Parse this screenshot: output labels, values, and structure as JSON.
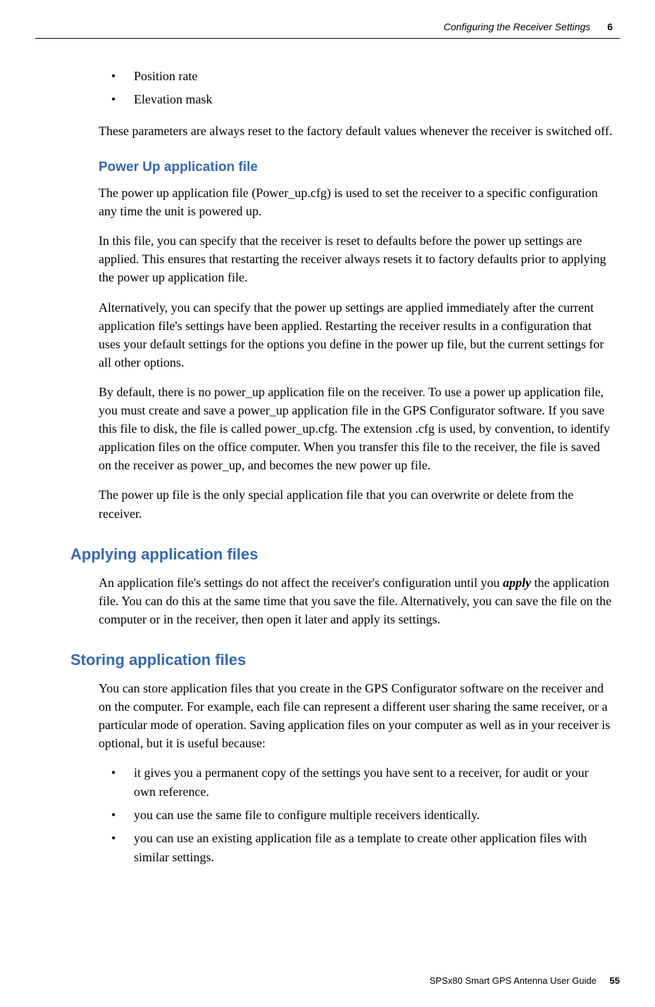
{
  "header": {
    "title": "Configuring the Receiver Settings",
    "chapter": "6"
  },
  "topList": {
    "items": [
      "Position rate",
      "Elevation mask"
    ]
  },
  "intro": {
    "p1": "These parameters are always reset to the factory default values whenever the receiver is switched off."
  },
  "powerUp": {
    "heading": "Power Up application file",
    "p1": "The power up application file (Power_up.cfg) is used to set the receiver to a specific configuration any time the unit is powered up.",
    "p2": "In this file, you can specify that the receiver is reset to defaults before the power up settings are applied. This ensures that restarting the receiver always resets it to factory defaults prior to applying the power up application file.",
    "p3": "Alternatively, you can specify that the power up settings are applied immediately after the current application file's settings have been applied. Restarting the receiver results in a configuration that uses your default settings for the options you define in the power up file, but the current settings for all other options.",
    "p4": "By default, there is no power_up application file on the receiver. To use a power up application file, you must create and save a power_up application file in the GPS Configurator software. If you save this file to disk, the file is called power_up.cfg. The extension .cfg is used, by convention, to identify application files on the office computer. When you transfer this file to the receiver, the file is saved on the receiver as power_up, and becomes the new power up file.",
    "p5": "The power up file is the only special application file that you can overwrite or delete from the receiver."
  },
  "applying": {
    "heading": "Applying application files",
    "p1_before": "An application file's settings do not affect the receiver's configuration until you ",
    "p1_apply": "apply",
    "p1_after": " the application file. You can do this at the same time that you save the file. Alternatively, you can save the file on the computer or in the receiver, then open it later and apply its settings."
  },
  "storing": {
    "heading": "Storing application files",
    "p1": "You can store application files that you create in the GPS Configurator software on the receiver and on the computer. For example, each file can represent a different user sharing the same receiver, or a particular mode of operation. Saving application files on your computer as well as in your receiver is optional, but it is useful because:",
    "bullets": [
      "it gives you a permanent copy of the settings you have sent to a receiver, for audit or your own reference.",
      "you can use the same file to configure multiple receivers identically.",
      "you can use an existing application file as a template to create other application files with similar settings."
    ]
  },
  "footer": {
    "title": "SPSx80 Smart GPS Antenna User Guide",
    "page": "55"
  }
}
